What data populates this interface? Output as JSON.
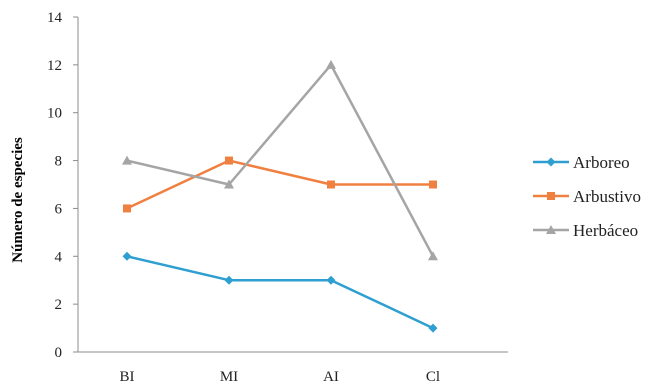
{
  "chart_data": {
    "type": "line",
    "categories": [
      "BI",
      "MI",
      "AI",
      "Cl"
    ],
    "series": [
      {
        "name": "Arboreo",
        "values": [
          4,
          3,
          3,
          1
        ],
        "color": "#2E9FD0",
        "marker": "diamond"
      },
      {
        "name": "Arbustivo",
        "values": [
          6,
          8,
          7,
          7
        ],
        "color": "#F08040",
        "marker": "square"
      },
      {
        "name": "Herbáceo",
        "values": [
          8,
          7,
          12,
          4
        ],
        "color": "#A5A5A5",
        "marker": "triangle"
      }
    ],
    "title": "",
    "xlabel": "",
    "ylabel": "Número de especies",
    "ylim": [
      0,
      14
    ],
    "yticks": [
      0,
      2,
      4,
      6,
      8,
      10,
      12,
      14
    ],
    "grid": false,
    "legend_position": "right"
  }
}
